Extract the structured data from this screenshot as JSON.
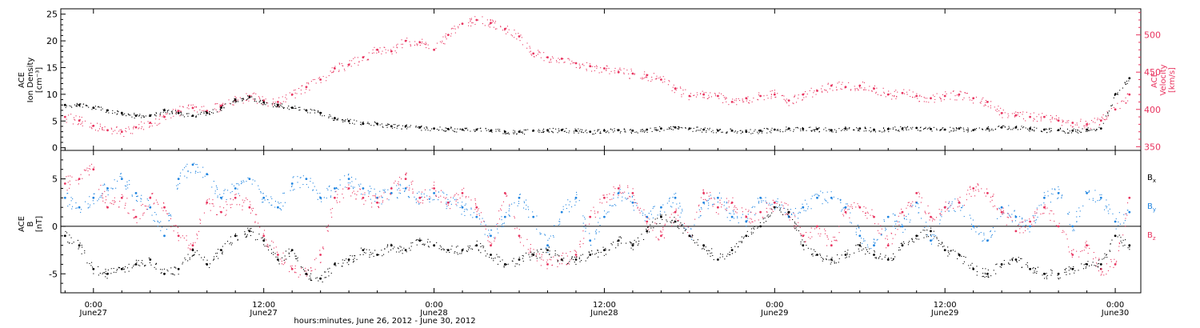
{
  "chart_data": [
    {
      "type": "scatter",
      "panel": "top",
      "title": "",
      "x_tick_labels": [
        "0:00\nJune27",
        "12:00\nJune27",
        "0:00\nJune28",
        "12:00\nJune28",
        "0:00\nJune29",
        "12:00\nJune29",
        "0:00\nJune30"
      ],
      "xlabel": "hours:minutes, June 26, 2012 - June 30, 2012",
      "x_unit": "hours since 2012-06-26 00:00",
      "xlim": [
        21.7,
        97.8
      ],
      "left_axis": {
        "label_lines": [
          "ACE",
          "Ion Density",
          "[cm⁻³]"
        ],
        "ylim": [
          -0.5,
          26
        ],
        "ticks": [
          0,
          5,
          10,
          15,
          20,
          25
        ],
        "color": "#000000"
      },
      "right_axis": {
        "label_lines": [
          "ACE",
          "Velocity",
          "[km/s]"
        ],
        "ylim": [
          345,
          535
        ],
        "ticks": [
          350,
          400,
          450,
          500
        ],
        "color": "#e8345f"
      },
      "series": [
        {
          "name": "",
          "axis": "left",
          "color": "#000000",
          "x": [
            22,
            23,
            24,
            25,
            26,
            27,
            28,
            29,
            30,
            31,
            32,
            33,
            34,
            35,
            36,
            37,
            38,
            39,
            40,
            41,
            42,
            43,
            44,
            45,
            46,
            47,
            48,
            49,
            50,
            51,
            52,
            53,
            54,
            55,
            56,
            57,
            58,
            59,
            60,
            61,
            62,
            63,
            64,
            65,
            66,
            67,
            68,
            69,
            70,
            71,
            72,
            73,
            74,
            75,
            76,
            77,
            78,
            79,
            80,
            81,
            82,
            83,
            84,
            85,
            86,
            87,
            88,
            89,
            90,
            91,
            92,
            93,
            94,
            95,
            96,
            97
          ],
          "y": [
            8.0,
            8.0,
            7.5,
            7.0,
            6.5,
            6.0,
            6.0,
            7.0,
            6.5,
            6.0,
            6.5,
            7.5,
            9.0,
            9.5,
            8.5,
            8.0,
            7.5,
            7.0,
            6.5,
            5.5,
            5.0,
            4.5,
            4.5,
            4.0,
            4.0,
            3.8,
            3.6,
            3.5,
            3.4,
            3.4,
            3.2,
            3.0,
            3.0,
            3.2,
            3.3,
            3.3,
            3.2,
            3.0,
            3.2,
            3.3,
            3.2,
            3.4,
            3.6,
            3.8,
            3.6,
            3.4,
            3.2,
            3.2,
            3.0,
            3.2,
            3.4,
            3.6,
            3.5,
            3.5,
            3.3,
            3.6,
            3.6,
            3.4,
            3.5,
            3.6,
            3.7,
            3.5,
            3.4,
            3.6,
            3.3,
            3.6,
            3.8,
            3.8,
            3.6,
            3.4,
            3.3,
            3.2,
            3.4,
            3.6,
            10.0,
            13.0
          ]
        },
        {
          "name": "",
          "axis": "right",
          "color": "#e8345f",
          "x": [
            22,
            23,
            24,
            25,
            26,
            27,
            28,
            29,
            30,
            31,
            32,
            33,
            34,
            35,
            36,
            37,
            38,
            39,
            40,
            41,
            42,
            43,
            44,
            45,
            46,
            47,
            48,
            49,
            50,
            51,
            52,
            53,
            54,
            55,
            56,
            57,
            58,
            59,
            60,
            61,
            62,
            63,
            64,
            65,
            66,
            67,
            68,
            69,
            70,
            71,
            72,
            73,
            74,
            75,
            76,
            77,
            78,
            79,
            80,
            81,
            82,
            83,
            84,
            85,
            86,
            87,
            88,
            89,
            90,
            91,
            92,
            93,
            94,
            95,
            96,
            97
          ],
          "y": [
            390,
            385,
            378,
            372,
            370,
            376,
            382,
            390,
            398,
            402,
            398,
            405,
            412,
            418,
            412,
            410,
            420,
            430,
            440,
            455,
            460,
            470,
            480,
            478,
            492,
            490,
            480,
            500,
            515,
            520,
            516,
            508,
            498,
            475,
            470,
            468,
            462,
            458,
            455,
            450,
            448,
            446,
            440,
            428,
            418,
            420,
            418,
            410,
            415,
            418,
            420,
            412,
            420,
            425,
            432,
            430,
            432,
            428,
            420,
            422,
            418,
            415,
            418,
            420,
            415,
            410,
            395,
            392,
            390,
            390,
            385,
            382,
            380,
            385,
            400,
            420
          ]
        }
      ]
    },
    {
      "type": "scatter",
      "panel": "bottom",
      "title": "",
      "x_tick_labels": [
        "0:00\nJune27",
        "12:00\nJune27",
        "0:00\nJune28",
        "12:00\nJune28",
        "0:00\nJune29",
        "12:00\nJune29",
        "0:00\nJune30"
      ],
      "xlabel": "hours:minutes, June 26, 2012 - June 30, 2012",
      "x_unit": "hours since 2012-06-26 00:00",
      "xlim": [
        21.7,
        97.8
      ],
      "left_axis": {
        "label_lines": [
          "ACE",
          "B",
          "[nT]"
        ],
        "ylim": [
          -7,
          8
        ],
        "ticks": [
          -5,
          0,
          5
        ],
        "color": "#000000"
      },
      "zero_line": true,
      "series": [
        {
          "name": "Bx",
          "color": "#000000",
          "x": [
            22,
            23,
            24,
            25,
            26,
            27,
            28,
            29,
            30,
            31,
            32,
            33,
            34,
            35,
            36,
            37,
            38,
            39,
            40,
            41,
            42,
            43,
            44,
            45,
            46,
            47,
            48,
            49,
            50,
            51,
            52,
            53,
            54,
            55,
            56,
            57,
            58,
            59,
            60,
            61,
            62,
            63,
            64,
            65,
            66,
            67,
            68,
            69,
            70,
            71,
            72,
            73,
            74,
            75,
            76,
            77,
            78,
            79,
            80,
            81,
            82,
            83,
            84,
            85,
            86,
            87,
            88,
            89,
            90,
            91,
            92,
            93,
            94,
            95,
            96,
            97
          ],
          "y": [
            -1.0,
            -2.0,
            -4.5,
            -5.0,
            -4.5,
            -4.0,
            -3.5,
            -5.0,
            -4.5,
            -2.5,
            -4.0,
            -2.5,
            -1.0,
            -0.5,
            -1.5,
            -3.5,
            -2.5,
            -5.0,
            -5.5,
            -4.0,
            -3.5,
            -2.5,
            -3.0,
            -2.0,
            -2.5,
            -1.5,
            -2.0,
            -2.5,
            -2.5,
            -2.0,
            -3.0,
            -4.0,
            -3.5,
            -3.0,
            -2.5,
            -3.5,
            -3.5,
            -3.0,
            -2.5,
            -1.5,
            -2.0,
            -0.5,
            1.0,
            0.5,
            -1.0,
            -2.0,
            -3.5,
            -2.5,
            -1.0,
            0.0,
            2.0,
            1.5,
            -2.0,
            -3.0,
            -3.5,
            -3.0,
            -2.0,
            -3.0,
            -3.5,
            -2.0,
            -1.0,
            -0.5,
            -2.5,
            -3.0,
            -4.5,
            -5.0,
            -4.0,
            -3.5,
            -4.5,
            -5.0,
            -5.0,
            -4.5,
            -4.0,
            -4.0,
            -1.0,
            -2.0
          ]
        },
        {
          "name": "By",
          "color": "#1f84e0",
          "x": [
            22,
            23,
            24,
            25,
            26,
            27,
            28,
            29,
            30,
            31,
            32,
            33,
            34,
            35,
            36,
            37,
            38,
            39,
            40,
            41,
            42,
            43,
            44,
            45,
            46,
            47,
            48,
            49,
            50,
            51,
            52,
            53,
            54,
            55,
            56,
            57,
            58,
            59,
            60,
            61,
            62,
            63,
            64,
            65,
            66,
            67,
            68,
            69,
            70,
            71,
            72,
            73,
            74,
            75,
            76,
            77,
            78,
            79,
            80,
            81,
            82,
            83,
            84,
            85,
            86,
            87,
            88,
            89,
            90,
            91,
            92,
            93,
            94,
            95,
            96,
            97
          ],
          "y": [
            3.0,
            2.0,
            3.0,
            4.0,
            5.0,
            3.5,
            2.0,
            -1.0,
            5.0,
            6.5,
            5.5,
            3.0,
            4.0,
            5.0,
            3.0,
            2.0,
            4.5,
            5.0,
            3.0,
            4.0,
            5.0,
            4.0,
            3.0,
            3.5,
            4.0,
            3.0,
            3.5,
            2.5,
            2.0,
            1.0,
            -1.0,
            1.0,
            3.0,
            1.0,
            -2.0,
            1.5,
            3.0,
            -1.5,
            1.0,
            3.5,
            2.5,
            1.0,
            2.0,
            3.0,
            -1.0,
            2.5,
            3.0,
            1.0,
            0.5,
            3.0,
            2.5,
            1.0,
            2.0,
            3.0,
            3.0,
            2.0,
            -1.0,
            -2.0,
            1.0,
            0.0,
            2.5,
            -1.5,
            2.0,
            2.5,
            0.0,
            -1.5,
            2.0,
            1.0,
            0.0,
            3.0,
            3.5,
            0.0,
            3.5,
            3.0,
            0.5,
            1.5
          ]
        },
        {
          "name": "Bz",
          "color": "#e8345f",
          "x": [
            22,
            23,
            24,
            25,
            26,
            27,
            28,
            29,
            30,
            31,
            32,
            33,
            34,
            35,
            36,
            37,
            38,
            39,
            40,
            41,
            42,
            43,
            44,
            45,
            46,
            47,
            48,
            49,
            50,
            51,
            52,
            53,
            54,
            55,
            56,
            57,
            58,
            59,
            60,
            61,
            62,
            63,
            64,
            65,
            66,
            67,
            68,
            69,
            70,
            71,
            72,
            73,
            74,
            75,
            76,
            77,
            78,
            79,
            80,
            81,
            82,
            83,
            84,
            85,
            86,
            87,
            88,
            89,
            90,
            91,
            92,
            93,
            94,
            95,
            96,
            97
          ],
          "y": [
            4.5,
            5.0,
            6.0,
            2.0,
            3.0,
            1.0,
            3.0,
            2.0,
            -1.0,
            -2.0,
            2.5,
            1.5,
            3.0,
            2.0,
            -1.0,
            -3.0,
            -4.5,
            -5.0,
            -3.0,
            3.0,
            4.0,
            3.0,
            2.5,
            4.0,
            5.0,
            3.0,
            4.0,
            2.5,
            3.5,
            2.0,
            -2.0,
            3.5,
            -1.0,
            -3.0,
            -4.0,
            -3.5,
            -3.0,
            1.0,
            3.0,
            4.0,
            3.5,
            0.5,
            -1.0,
            1.5,
            -1.0,
            3.5,
            2.0,
            2.5,
            1.0,
            1.5,
            2.5,
            1.5,
            -1.0,
            0.0,
            -2.0,
            1.5,
            2.0,
            1.0,
            -2.0,
            1.5,
            3.5,
            1.0,
            2.0,
            2.5,
            4.0,
            3.5,
            1.5,
            -0.5,
            0.5,
            2.0,
            0.0,
            -3.0,
            -2.0,
            -4.5,
            -4.0,
            3.0
          ]
        }
      ],
      "legend": [
        "Bx",
        "By",
        "Bz"
      ],
      "legend_placement": "right"
    }
  ]
}
